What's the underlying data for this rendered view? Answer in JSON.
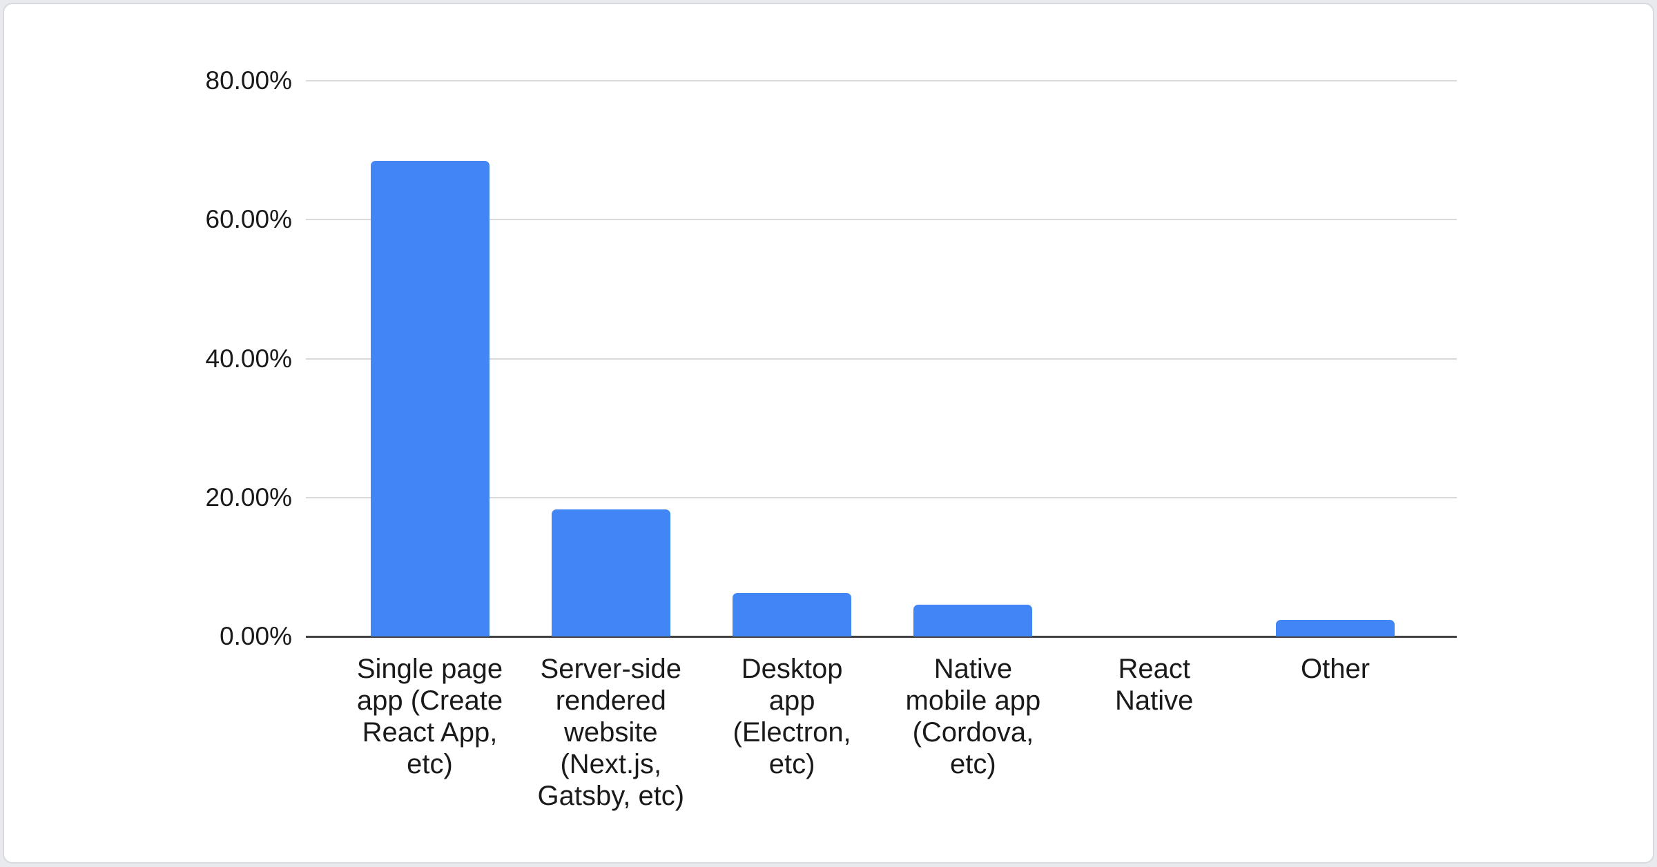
{
  "page": {
    "background_color": "#e8eaed",
    "card_background_color": "#ffffff",
    "card_border_color": "#d7dade"
  },
  "chart_data": {
    "type": "bar",
    "title": "",
    "xlabel": "",
    "ylabel": "",
    "categories": [
      "Single page app (Create React App, etc)",
      "Server-side rendered website (Next.js, Gatsby, etc)",
      "Desktop app (Electron, etc)",
      "Native mobile app (Cordova, etc)",
      "React Native",
      "Other"
    ],
    "category_lines": [
      [
        "Single page",
        "app (Create",
        "React App,",
        "etc)"
      ],
      [
        "Server-side",
        "rendered",
        "website",
        "(Next.js,",
        "Gatsby, etc)"
      ],
      [
        "Desktop",
        "app",
        "(Electron,",
        "etc)"
      ],
      [
        "Native",
        "mobile app",
        "(Cordova,",
        "etc)"
      ],
      [
        "React",
        "Native"
      ],
      [
        "Other"
      ]
    ],
    "values": [
      68.5,
      18.3,
      6.3,
      4.6,
      0,
      2.4
    ],
    "value_unit": "%",
    "ylim": [
      0,
      80
    ],
    "yticks": [
      0,
      20,
      40,
      60,
      80
    ],
    "ytick_labels": [
      "0.00%",
      "20.00%",
      "40.00%",
      "60.00%",
      "80.00%"
    ],
    "grid": true,
    "legend_position": "none",
    "bar_color": "#4285f4",
    "gridline_color": "#d9d9d9",
    "axis_line_color": "#424242",
    "text_color": "#1a1a1a"
  }
}
